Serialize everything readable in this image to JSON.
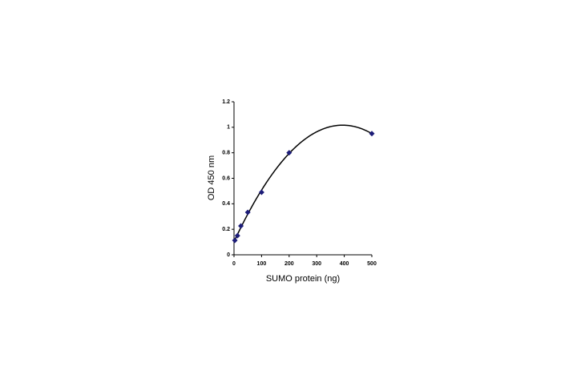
{
  "chart_data": {
    "type": "scatter",
    "x_label": "SUMO protein (ng)",
    "y_label": "OD 450 nm",
    "series": [
      {
        "color": "#1c1c78",
        "x": [
          3.125,
          12.5,
          25,
          50,
          100,
          200,
          500
        ],
        "values": [
          0.113,
          0.15,
          0.226,
          0.333,
          0.49,
          0.8,
          0.95
        ]
      }
    ],
    "trendline": "polynomial",
    "trendline_order": 2,
    "xlim": [
      0,
      500
    ],
    "xticks": [
      0,
      100,
      200,
      300,
      400,
      500
    ],
    "ylim": [
      0,
      1.2
    ],
    "yticks": [
      0,
      0.2,
      0.4,
      0.6,
      0.8,
      1,
      1.2
    ],
    "grid": false
  }
}
